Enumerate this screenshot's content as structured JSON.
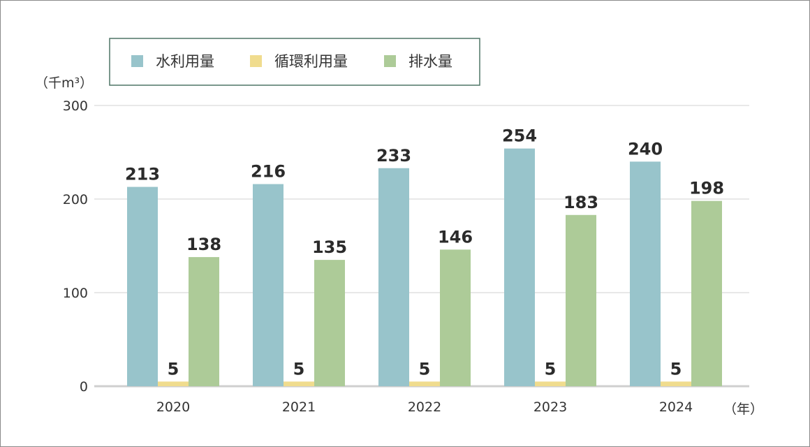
{
  "chart_data": {
    "type": "bar",
    "categories": [
      "2020",
      "2021",
      "2022",
      "2023",
      "2024"
    ],
    "series": [
      {
        "name": "水利用量",
        "values": [
          213,
          216,
          233,
          254,
          240
        ],
        "color": "#98c4cb"
      },
      {
        "name": "循環利用量",
        "values": [
          5,
          5,
          5,
          5,
          5
        ],
        "color": "#f0dc8e"
      },
      {
        "name": "排水量",
        "values": [
          138,
          135,
          146,
          183,
          198
        ],
        "color": "#adcb98"
      }
    ],
    "ylabel": "（千m³）",
    "xlabel": "（年）",
    "ylim": [
      0,
      300
    ],
    "yticks": [
      0,
      100,
      200,
      300
    ],
    "grid": true,
    "legend_position": "top-left",
    "legend_border_color": "#4f7566",
    "axis_color": "#cfcfcf",
    "grid_color": "#d9d9d9"
  }
}
